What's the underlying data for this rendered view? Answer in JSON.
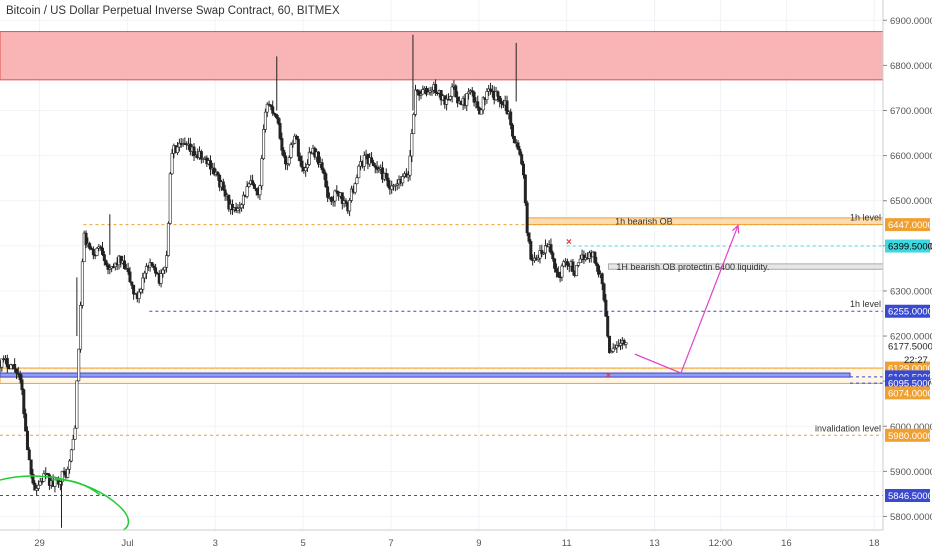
{
  "chart_data": {
    "type": "candlestick",
    "title": "Bitcoin / US Dollar Perpetual Inverse Swap Contract, 60, BITMEX",
    "ylim": [
      5770,
      6945
    ],
    "y_ticks": [
      "6900.0000",
      "6800.0000",
      "6700.0000",
      "6600.0000",
      "6500.0000",
      "6400.0000",
      "6300.0000",
      "6200.0000",
      "6100.0000",
      "6000.0000",
      "5900.0000",
      "5800.0000"
    ],
    "x_ticks": [
      {
        "label": "29",
        "day": 29
      },
      {
        "label": "Jul",
        "day": 31
      },
      {
        "label": "3",
        "day": 33
      },
      {
        "label": "5",
        "day": 35
      },
      {
        "label": "7",
        "day": 37
      },
      {
        "label": "9",
        "day": 39
      },
      {
        "label": "11",
        "day": 41
      },
      {
        "label": "13",
        "day": 43
      },
      {
        "label": "12:00",
        "day": 44.5
      },
      {
        "label": "16",
        "day": 46
      },
      {
        "label": "18",
        "day": 48
      }
    ],
    "x_range": [
      28.1,
      48.2
    ],
    "price_path": [
      [
        28.1,
        6143
      ],
      [
        28.3,
        6140
      ],
      [
        28.5,
        6125
      ],
      [
        28.6,
        6075
      ],
      [
        28.75,
        5930
      ],
      [
        28.9,
        5860
      ],
      [
        29.1,
        5890
      ],
      [
        29.3,
        5870
      ],
      [
        29.5,
        5890
      ],
      [
        29.65,
        5900
      ],
      [
        29.8,
        5990
      ],
      [
        29.9,
        6190
      ],
      [
        30.0,
        6420
      ],
      [
        30.2,
        6380
      ],
      [
        30.4,
        6400
      ],
      [
        30.6,
        6340
      ],
      [
        30.8,
        6370
      ],
      [
        31.0,
        6340
      ],
      [
        31.2,
        6280
      ],
      [
        31.4,
        6340
      ],
      [
        31.6,
        6360
      ],
      [
        31.75,
        6320
      ],
      [
        31.9,
        6380
      ],
      [
        32.0,
        6610
      ],
      [
        32.3,
        6620
      ],
      [
        32.6,
        6600
      ],
      [
        32.9,
        6580
      ],
      [
        33.2,
        6520
      ],
      [
        33.4,
        6470
      ],
      [
        33.6,
        6500
      ],
      [
        33.8,
        6540
      ],
      [
        34.0,
        6500
      ],
      [
        34.15,
        6720
      ],
      [
        34.4,
        6690
      ],
      [
        34.6,
        6570
      ],
      [
        34.8,
        6650
      ],
      [
        35.0,
        6560
      ],
      [
        35.2,
        6620
      ],
      [
        35.4,
        6580
      ],
      [
        35.6,
        6500
      ],
      [
        35.8,
        6520
      ],
      [
        36.0,
        6480
      ],
      [
        36.2,
        6550
      ],
      [
        36.4,
        6600
      ],
      [
        36.6,
        6580
      ],
      [
        36.8,
        6560
      ],
      [
        37.0,
        6520
      ],
      [
        37.2,
        6540
      ],
      [
        37.4,
        6560
      ],
      [
        37.55,
        6740
      ],
      [
        37.8,
        6740
      ],
      [
        38.0,
        6750
      ],
      [
        38.2,
        6720
      ],
      [
        38.4,
        6750
      ],
      [
        38.6,
        6710
      ],
      [
        38.8,
        6740
      ],
      [
        39.0,
        6700
      ],
      [
        39.2,
        6740
      ],
      [
        39.4,
        6730
      ],
      [
        39.6,
        6720
      ],
      [
        39.8,
        6640
      ],
      [
        40.0,
        6580
      ],
      [
        40.1,
        6420
      ],
      [
        40.2,
        6370
      ],
      [
        40.4,
        6380
      ],
      [
        40.6,
        6400
      ],
      [
        40.8,
        6330
      ],
      [
        41.0,
        6370
      ],
      [
        41.2,
        6340
      ],
      [
        41.4,
        6380
      ],
      [
        41.6,
        6380
      ],
      [
        41.75,
        6340
      ],
      [
        41.85,
        6290
      ],
      [
        41.95,
        6170
      ],
      [
        42.1,
        6180
      ],
      [
        42.25,
        6185
      ],
      [
        42.35,
        6178
      ]
    ],
    "zones": [
      {
        "name": "supply-zone",
        "top": 6875,
        "bottom": 6768,
        "to": 48.2,
        "color": "#f8a8a8",
        "border": "#e05050"
      },
      {
        "name": "1h-bearish-ob",
        "label": "1h bearish OB",
        "top": 6462,
        "bottom": 6447,
        "from": 40.1,
        "to": 48.2,
        "color": "#fbd7a4",
        "border": "#f0a030"
      },
      {
        "name": "1h-ob-protecting",
        "label": "1H bearish OB protectin 6400 liquidity.",
        "top": 6360,
        "bottom": 6348,
        "from": 41.95,
        "to": 48.2,
        "color": "#e2e2e2",
        "border": "#aaaaaa"
      },
      {
        "name": "demand-box",
        "top": 6129,
        "bottom": 6095,
        "to": 48.2,
        "color": "#fff4e0",
        "border": "#f0a030"
      },
      {
        "name": "blue-zone",
        "top": 6118,
        "bottom": 6109,
        "to": 47.45,
        "color": "#7e8cf5",
        "border": "#3a4ad0"
      }
    ],
    "levels": [
      {
        "name": "level-6447",
        "price": 6447,
        "from": 30.0,
        "to": 48.2,
        "color": "#f0a030",
        "badge": "6447.0000",
        "label": "1h level"
      },
      {
        "name": "level-6399",
        "price": 6399.5,
        "from": 41.0,
        "to": 48.2,
        "color": "#40d8e0",
        "badge": "6399.5000"
      },
      {
        "name": "level-6255",
        "price": 6255,
        "from": 31.5,
        "to": 48.2,
        "color": "#3a4ad0",
        "badge": "6255.0000",
        "label": "1h level"
      },
      {
        "name": "level-6129",
        "price": 6129,
        "from": 28.1,
        "to": 48.2,
        "color": "#f0a030",
        "badge": "6129.0000"
      },
      {
        "name": "level-6109",
        "price": 6109.5,
        "from": 47.45,
        "to": 48.2,
        "color": "#3a4ad0",
        "badge": "6109.5000"
      },
      {
        "name": "level-6095",
        "price": 6095.5,
        "from": 47.45,
        "to": 48.2,
        "color": "#3a4ad0",
        "badge": "6095.5000"
      },
      {
        "name": "level-6074",
        "price": 6074,
        "from": 48.2,
        "to": 48.2,
        "color": "#f0a030",
        "badge": "6074.0000"
      },
      {
        "name": "level-5980",
        "price": 5980,
        "from": 28.1,
        "to": 48.2,
        "color": "#f0a030",
        "badge": "5980.0000",
        "label": "invalidation level"
      },
      {
        "name": "level-5846",
        "price": 5846.5,
        "from": 28.1,
        "to": 48.2,
        "color": "#3a4ad0",
        "badge": "5846.5000"
      }
    ],
    "current_price": {
      "value": "6177.5000",
      "countdown": "22:27",
      "price": 6177.5
    },
    "arrows": [
      {
        "name": "projection-arrow-down",
        "from": [
          42.55,
          6160
        ],
        "to": [
          43.6,
          6118
        ]
      },
      {
        "name": "projection-arrow-up",
        "from": [
          43.6,
          6118
        ],
        "to": [
          44.9,
          6445
        ]
      }
    ],
    "markers": [
      {
        "name": "x-marker-upper",
        "x": 41.05,
        "price": 6409
      },
      {
        "name": "x-marker-lower",
        "x": 41.95,
        "price": 6112
      }
    ],
    "annotations_colors": {
      "arrow": "#e040c8",
      "marker": "#e53935",
      "ellipse": "#22cc33"
    }
  }
}
